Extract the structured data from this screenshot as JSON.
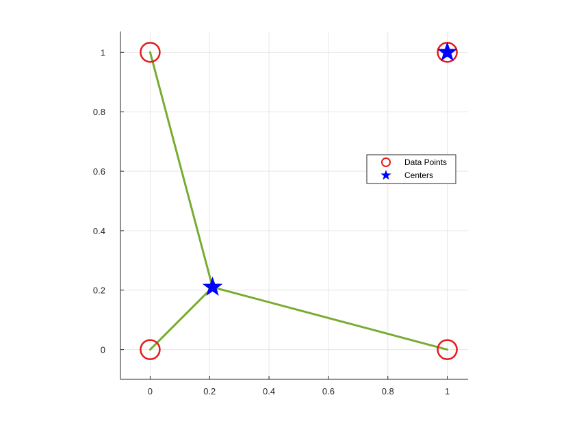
{
  "chart_data": {
    "type": "scatter",
    "title": "",
    "xlabel": "",
    "ylabel": "",
    "xlim": [
      -0.1,
      1.07
    ],
    "ylim": [
      -0.1,
      1.07
    ],
    "xticks": [
      0,
      0.2,
      0.4,
      0.6,
      0.8,
      1
    ],
    "yticks": [
      0,
      0.2,
      0.4,
      0.6,
      0.8,
      1
    ],
    "xtick_labels": [
      "0",
      "0.2",
      "0.4",
      "0.6",
      "0.8",
      "1"
    ],
    "ytick_labels": [
      "0",
      "0.2",
      "0.4",
      "0.6",
      "0.8",
      "1"
    ],
    "grid": true,
    "legend_position": "right",
    "series": [
      {
        "name": "Data Points",
        "marker": "circle",
        "color": "#e41a1c",
        "x": [
          0,
          0,
          1,
          1
        ],
        "y": [
          1,
          0,
          0,
          1
        ]
      },
      {
        "name": "Centers",
        "marker": "star",
        "color": "#0000ff",
        "x": [
          0.21,
          1
        ],
        "y": [
          0.21,
          1
        ]
      }
    ],
    "connections": {
      "color": "#77ac30",
      "segments": [
        {
          "from": [
            0.21,
            0.21
          ],
          "to": [
            0,
            1
          ]
        },
        {
          "from": [
            0.21,
            0.21
          ],
          "to": [
            0,
            0
          ]
        },
        {
          "from": [
            0.21,
            0.21
          ],
          "to": [
            1,
            0
          ]
        }
      ]
    }
  }
}
